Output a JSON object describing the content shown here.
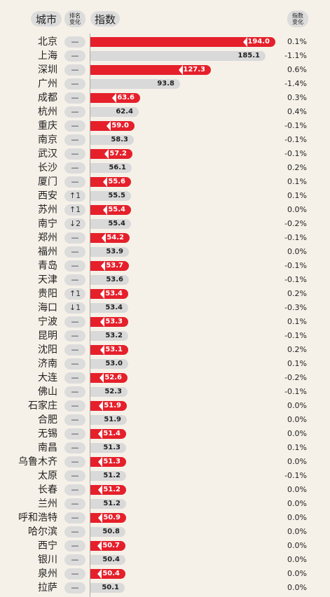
{
  "header": {
    "city": "城市",
    "rank_change_line1": "排名",
    "rank_change_line2": "变化",
    "index": "指数",
    "index_change_line1": "指数",
    "index_change_line2": "变化"
  },
  "colors": {
    "highlight": "#e5202b",
    "neutral": "#d9d9d9",
    "background": "#f6f1e8"
  },
  "chart_data": {
    "type": "bar",
    "orientation": "horizontal",
    "categories": [
      "北京",
      "上海",
      "深圳",
      "广州",
      "成都",
      "杭州",
      "重庆",
      "南京",
      "武汉",
      "长沙",
      "厦门",
      "西安",
      "苏州",
      "南宁",
      "郑州",
      "福州",
      "青岛",
      "天津",
      "贵阳",
      "海口",
      "宁波",
      "昆明",
      "沈阳",
      "济南",
      "大连",
      "佛山",
      "石家庄",
      "合肥",
      "无锡",
      "南昌",
      "乌鲁木齐",
      "太原",
      "长春",
      "兰州",
      "呼和浩特",
      "哈尔滨",
      "西宁",
      "银川",
      "泉州",
      "拉萨"
    ],
    "values": [
      194.0,
      185.1,
      127.3,
      93.8,
      63.6,
      62.4,
      59.0,
      58.3,
      57.2,
      56.1,
      55.6,
      55.5,
      55.4,
      55.4,
      54.2,
      53.9,
      53.7,
      53.6,
      53.4,
      53.4,
      53.3,
      53.2,
      53.1,
      53.0,
      52.6,
      52.3,
      51.9,
      51.9,
      51.4,
      51.3,
      51.3,
      51.2,
      51.2,
      51.2,
      50.9,
      50.8,
      50.7,
      50.4,
      50.4,
      50.1
    ],
    "value_labels": [
      "194.0",
      "185.1",
      "127.3",
      "93.8",
      "63.6",
      "62.4",
      "59.0",
      "58.3",
      "57.2",
      "56.1",
      "55.6",
      "55.5",
      "55.4",
      "55.4",
      "54.2",
      "53.9",
      "53.7",
      "53.6",
      "53.4",
      "53.4",
      "53.3",
      "53.2",
      "53.1",
      "53.0",
      "52.6",
      "52.3",
      "51.9",
      "51.9",
      "51.4",
      "51.3",
      "51.3",
      "51.2",
      "51.2",
      "51.2",
      "50.9",
      "50.8",
      "50.7",
      "50.4",
      "50.4",
      "50.1"
    ],
    "rank_change": [
      "—",
      "—",
      "—",
      "—",
      "—",
      "—",
      "—",
      "—",
      "—",
      "—",
      "—",
      "↑1",
      "↑1",
      "↓2",
      "—",
      "—",
      "—",
      "—",
      "↑1",
      "↓1",
      "—",
      "—",
      "—",
      "—",
      "—",
      "—",
      "—",
      "—",
      "—",
      "—",
      "—",
      "—",
      "—",
      "—",
      "—",
      "—",
      "—",
      "—",
      "—",
      "—"
    ],
    "index_change": [
      "0.1%",
      "-1.1%",
      "0.6%",
      "-1.4%",
      "0.3%",
      "0.4%",
      "-0.1%",
      "-0.1%",
      "-0.1%",
      "0.2%",
      "0.1%",
      "0.1%",
      "0.0%",
      "-0.2%",
      "-0.1%",
      "0.0%",
      "-0.1%",
      "-0.1%",
      "0.2%",
      "-0.3%",
      "0.1%",
      "-0.1%",
      "0.2%",
      "0.1%",
      "-0.2%",
      "-0.1%",
      "0.0%",
      "0.0%",
      "0.0%",
      "0.1%",
      "0.0%",
      "-0.1%",
      "0.0%",
      "0.0%",
      "0.0%",
      "0.0%",
      "0.0%",
      "0.0%",
      "0.0%",
      "0.0%"
    ],
    "highlight_rows": [
      true,
      false,
      true,
      false,
      true,
      false,
      true,
      false,
      true,
      false,
      true,
      false,
      true,
      false,
      true,
      false,
      true,
      false,
      true,
      false,
      true,
      false,
      true,
      false,
      true,
      false,
      true,
      false,
      true,
      false,
      true,
      false,
      true,
      false,
      true,
      false,
      true,
      false,
      true,
      false
    ],
    "xlim": [
      0,
      194.0
    ]
  }
}
